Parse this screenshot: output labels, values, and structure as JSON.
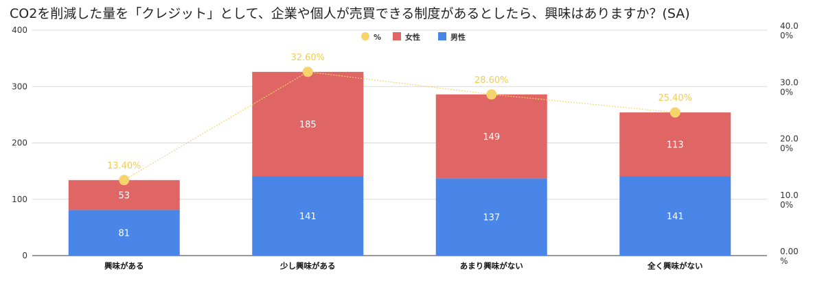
{
  "chart_data": {
    "type": "bar",
    "stacked": true,
    "title": "CO2を削減した量を「クレジット」として、企業や個人が売買できる制度があるとしたら、興味はありますか？(SA)",
    "categories": [
      "興味がある",
      "少し興味がある",
      "あまり興味がない",
      "全く興味がない"
    ],
    "series": [
      {
        "name": "男性",
        "values": [
          81,
          141,
          137,
          141
        ],
        "color": "#4a86e8"
      },
      {
        "name": "女性",
        "values": [
          53,
          185,
          149,
          113
        ],
        "color": "#e06666"
      }
    ],
    "line_series": {
      "name": "%",
      "values": [
        13.4,
        32.6,
        28.6,
        25.4
      ],
      "labels": [
        "13.40%",
        "32.60%",
        "28.60%",
        "25.40%"
      ],
      "color": "#f6d46b"
    },
    "ylim": [
      0,
      400
    ],
    "y_ticks": [
      "0",
      "100",
      "200",
      "300",
      "400"
    ],
    "y2lim": [
      0,
      40
    ],
    "y2_ticks": [
      [
        "0.00",
        "%"
      ],
      [
        "10.0",
        "0%"
      ],
      [
        "20.0",
        "0%"
      ],
      [
        "30.0",
        "0%"
      ],
      [
        "40.0",
        "0%"
      ]
    ],
    "legend": [
      "%",
      "女性",
      "男性"
    ],
    "legend_position": "top",
    "grid": true
  }
}
